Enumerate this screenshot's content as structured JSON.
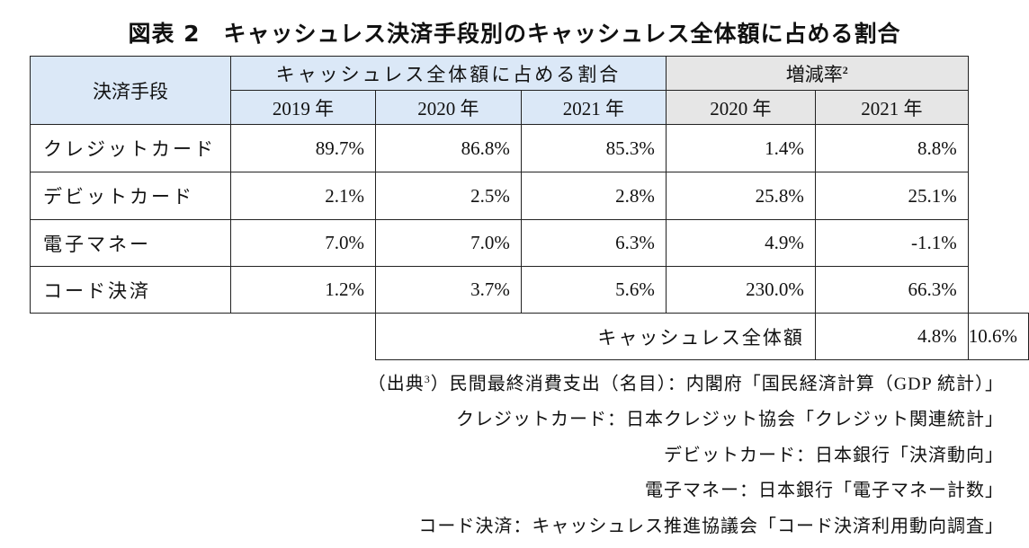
{
  "title": "図表 2　キャッシュレス決済手段別のキャッシュレス全体額に占める割合",
  "table": {
    "header": {
      "method": "決済手段",
      "share_group": "キャッシュレス全体額に占める割合",
      "growth_group": "増減率",
      "growth_note": "2",
      "share_years": [
        "2019 年",
        "2020 年",
        "2021 年"
      ],
      "growth_years": [
        "2020 年",
        "2021 年"
      ]
    },
    "rows": [
      [
        "クレジットカード",
        "89.7%",
        "86.8%",
        "85.3%",
        "1.4%",
        "8.8%"
      ],
      [
        "デビットカード",
        "2.1%",
        "2.5%",
        "2.8%",
        "25.8%",
        "25.1%"
      ],
      [
        "電子マネー",
        "7.0%",
        "7.0%",
        "6.3%",
        "4.9%",
        "-1.1%"
      ],
      [
        "コード決済",
        "1.2%",
        "3.7%",
        "5.6%",
        "230.0%",
        "66.3%"
      ]
    ],
    "total": {
      "label": "キャッシュレス全体額",
      "values": [
        "4.8%",
        "10.6%"
      ]
    }
  },
  "sources": {
    "prefix": "（出典",
    "note": "3",
    "first_rest": "）民間最終消費支出（名目）：内閣府「国民経済計算（GDP 統計）」",
    "lines": [
      "クレジットカード：日本クレジット協会「クレジット関連統計」",
      "デビットカード：日本銀行「決済動向」",
      "電子マネー：日本銀行「電子マネー計数」",
      "コード決済：キャッシュレス推進協議会「コード決済利用動向調査」"
    ]
  }
}
